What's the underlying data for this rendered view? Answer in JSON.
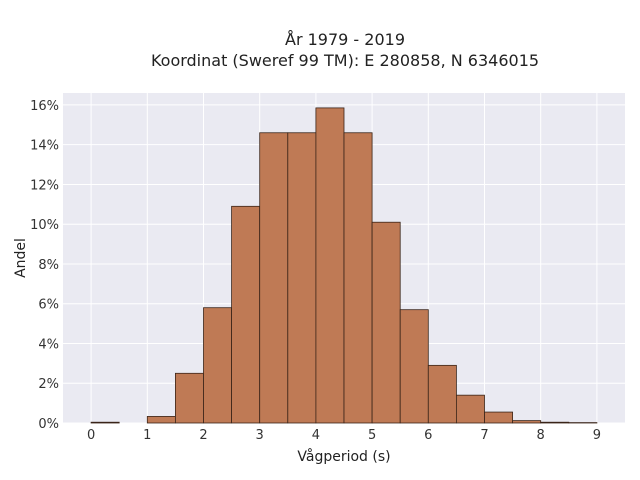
{
  "chart_data": {
    "type": "bar",
    "title_line1": "År 1979 - 2019",
    "title_line2": "Koordinat (Sweref 99 TM): E 280858, N 6346015",
    "xlabel": "Vågperiod (s)",
    "ylabel": "Andel",
    "xlim": [
      -0.5,
      9.5
    ],
    "ylim": [
      0,
      16.6
    ],
    "x_ticks": [
      0,
      1,
      2,
      3,
      4,
      5,
      6,
      7,
      8,
      9
    ],
    "x_tick_labels": [
      "0",
      "1",
      "2",
      "3",
      "4",
      "5",
      "6",
      "7",
      "8",
      "9"
    ],
    "y_ticks": [
      0,
      2,
      4,
      6,
      8,
      10,
      12,
      14,
      16
    ],
    "y_tick_labels": [
      "0%",
      "2%",
      "4%",
      "6%",
      "8%",
      "10%",
      "12%",
      "14%",
      "16%"
    ],
    "bin_width": 0.5,
    "bins": [
      {
        "start": 0.0,
        "value": 0.04
      },
      {
        "start": 0.5,
        "value": 0.0
      },
      {
        "start": 1.0,
        "value": 0.33
      },
      {
        "start": 1.5,
        "value": 2.5
      },
      {
        "start": 2.0,
        "value": 5.8
      },
      {
        "start": 2.5,
        "value": 10.9
      },
      {
        "start": 3.0,
        "value": 14.6
      },
      {
        "start": 3.5,
        "value": 14.6
      },
      {
        "start": 4.0,
        "value": 15.85
      },
      {
        "start": 4.5,
        "value": 14.6
      },
      {
        "start": 5.0,
        "value": 10.1
      },
      {
        "start": 5.5,
        "value": 5.7
      },
      {
        "start": 6.0,
        "value": 2.9
      },
      {
        "start": 6.5,
        "value": 1.4
      },
      {
        "start": 7.0,
        "value": 0.55
      },
      {
        "start": 7.5,
        "value": 0.12
      },
      {
        "start": 8.0,
        "value": 0.04
      },
      {
        "start": 8.5,
        "value": 0.02
      }
    ],
    "grid": true,
    "colors": {
      "bar_fill": "#bf7a55",
      "bar_edge": "#3a2418",
      "plot_bg": "#eaeaf2",
      "grid": "#ffffff"
    }
  }
}
